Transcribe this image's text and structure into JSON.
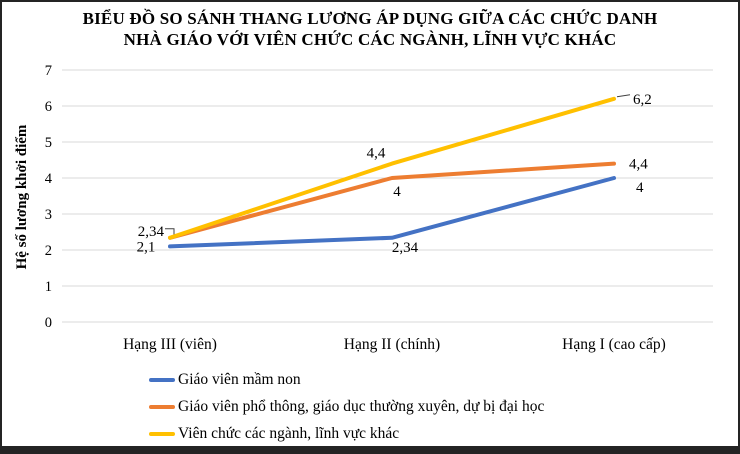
{
  "title": {
    "line1": "BIỂU ĐỒ SO SÁNH THANG LƯƠNG ÁP DỤNG GIỮA CÁC CHỨC DANH",
    "line2": "NHÀ GIÁO VỚI VIÊN CHỨC CÁC NGÀNH, LĨNH VỰC KHÁC"
  },
  "chart_data": {
    "type": "line",
    "title": "BIỂU ĐỒ SO SÁNH THANG LƯƠNG ÁP DỤNG GIỮA CÁC CHỨC DANH NHÀ GIÁO VỚI VIÊN CHỨC CÁC NGÀNH, LĨNH VỰC KHÁC",
    "categories": [
      "Hạng III (viên)",
      "Hạng II (chính)",
      "Hạng I (cao cấp)"
    ],
    "xlabel": "",
    "ylabel": "Hệ số lương khởi điểm",
    "ylim": [
      0,
      7
    ],
    "ytick_step": 1,
    "yticks": [
      0,
      1,
      2,
      3,
      4,
      5,
      6,
      7
    ],
    "grid": true,
    "grid_color": "#d9d9d9",
    "text_color": "#000000",
    "legend_position": "bottom-left",
    "decimal_separator": ",",
    "series": [
      {
        "name": "Giáo viên mầm non",
        "color": "#4472C4",
        "values": [
          2.1,
          2.34,
          4
        ],
        "point_labels": [
          "2,1",
          "2,34",
          "4"
        ]
      },
      {
        "name": "Giáo viên phổ thông, giáo dục thường xuyên, dự bị đại học",
        "color": "#ED7D31",
        "values": [
          2.34,
          4,
          4.4
        ],
        "point_labels": [
          "2,34",
          "4",
          "4,4"
        ]
      },
      {
        "name": "Viên chức các ngành, lĩnh vực khác",
        "color": "#FFC000",
        "values": [
          2.34,
          4.4,
          6.2
        ],
        "point_labels": [
          "",
          "4,4",
          "6,2"
        ]
      }
    ]
  }
}
